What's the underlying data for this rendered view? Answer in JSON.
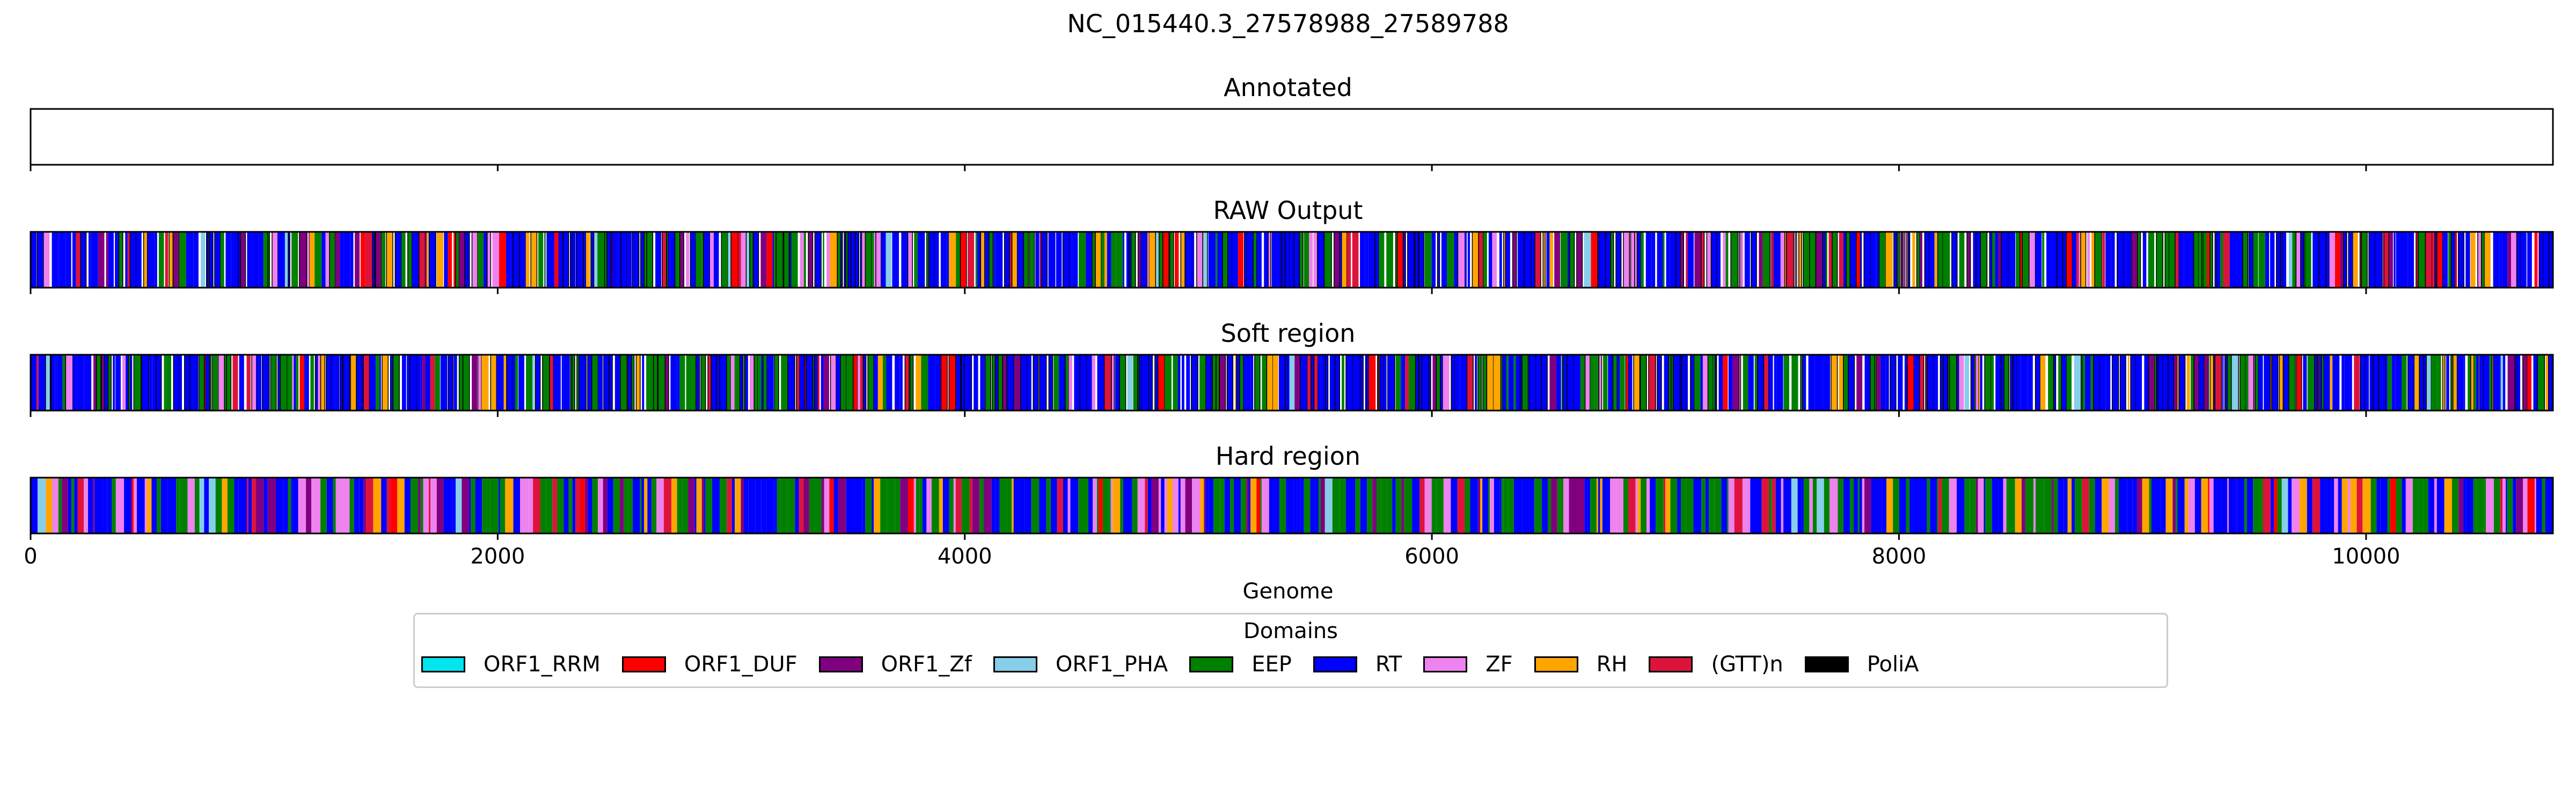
{
  "chart_data": {
    "type": "bar",
    "title": "NC_015440.3_27578988_27589788",
    "xlabel": "Genome",
    "xlim": [
      0,
      10800
    ],
    "xticks": [
      0,
      2000,
      4000,
      6000,
      8000,
      10000
    ],
    "xtick_labels": [
      "0",
      "2000",
      "4000",
      "6000",
      "8000",
      "10000"
    ],
    "panels": [
      {
        "title": "Annotated",
        "segments": "none"
      },
      {
        "title": "RAW Output",
        "segments": "dense per-position domain calls"
      },
      {
        "title": "Soft region",
        "segments": "dense per-position domain calls"
      },
      {
        "title": "Hard region",
        "segments": "dense per-position domain calls"
      }
    ],
    "legend": {
      "title": "Domains",
      "placement": "lower-center",
      "items": [
        {
          "label": "ORF1_RRM",
          "color": "#00e5ee"
        },
        {
          "label": "ORF1_DUF",
          "color": "#ff0000"
        },
        {
          "label": "ORF1_Zf",
          "color": "#800080"
        },
        {
          "label": "ORF1_PHA",
          "color": "#87ceeb"
        },
        {
          "label": "EEP",
          "color": "#008000"
        },
        {
          "label": "RT",
          "color": "#0000ff"
        },
        {
          "label": "ZF",
          "color": "#ee82ee"
        },
        {
          "label": "RH",
          "color": "#ffa500"
        },
        {
          "label": "(GTT)n",
          "color": "#dc143c"
        },
        {
          "label": "PoliA",
          "color": "#000000"
        }
      ]
    }
  }
}
